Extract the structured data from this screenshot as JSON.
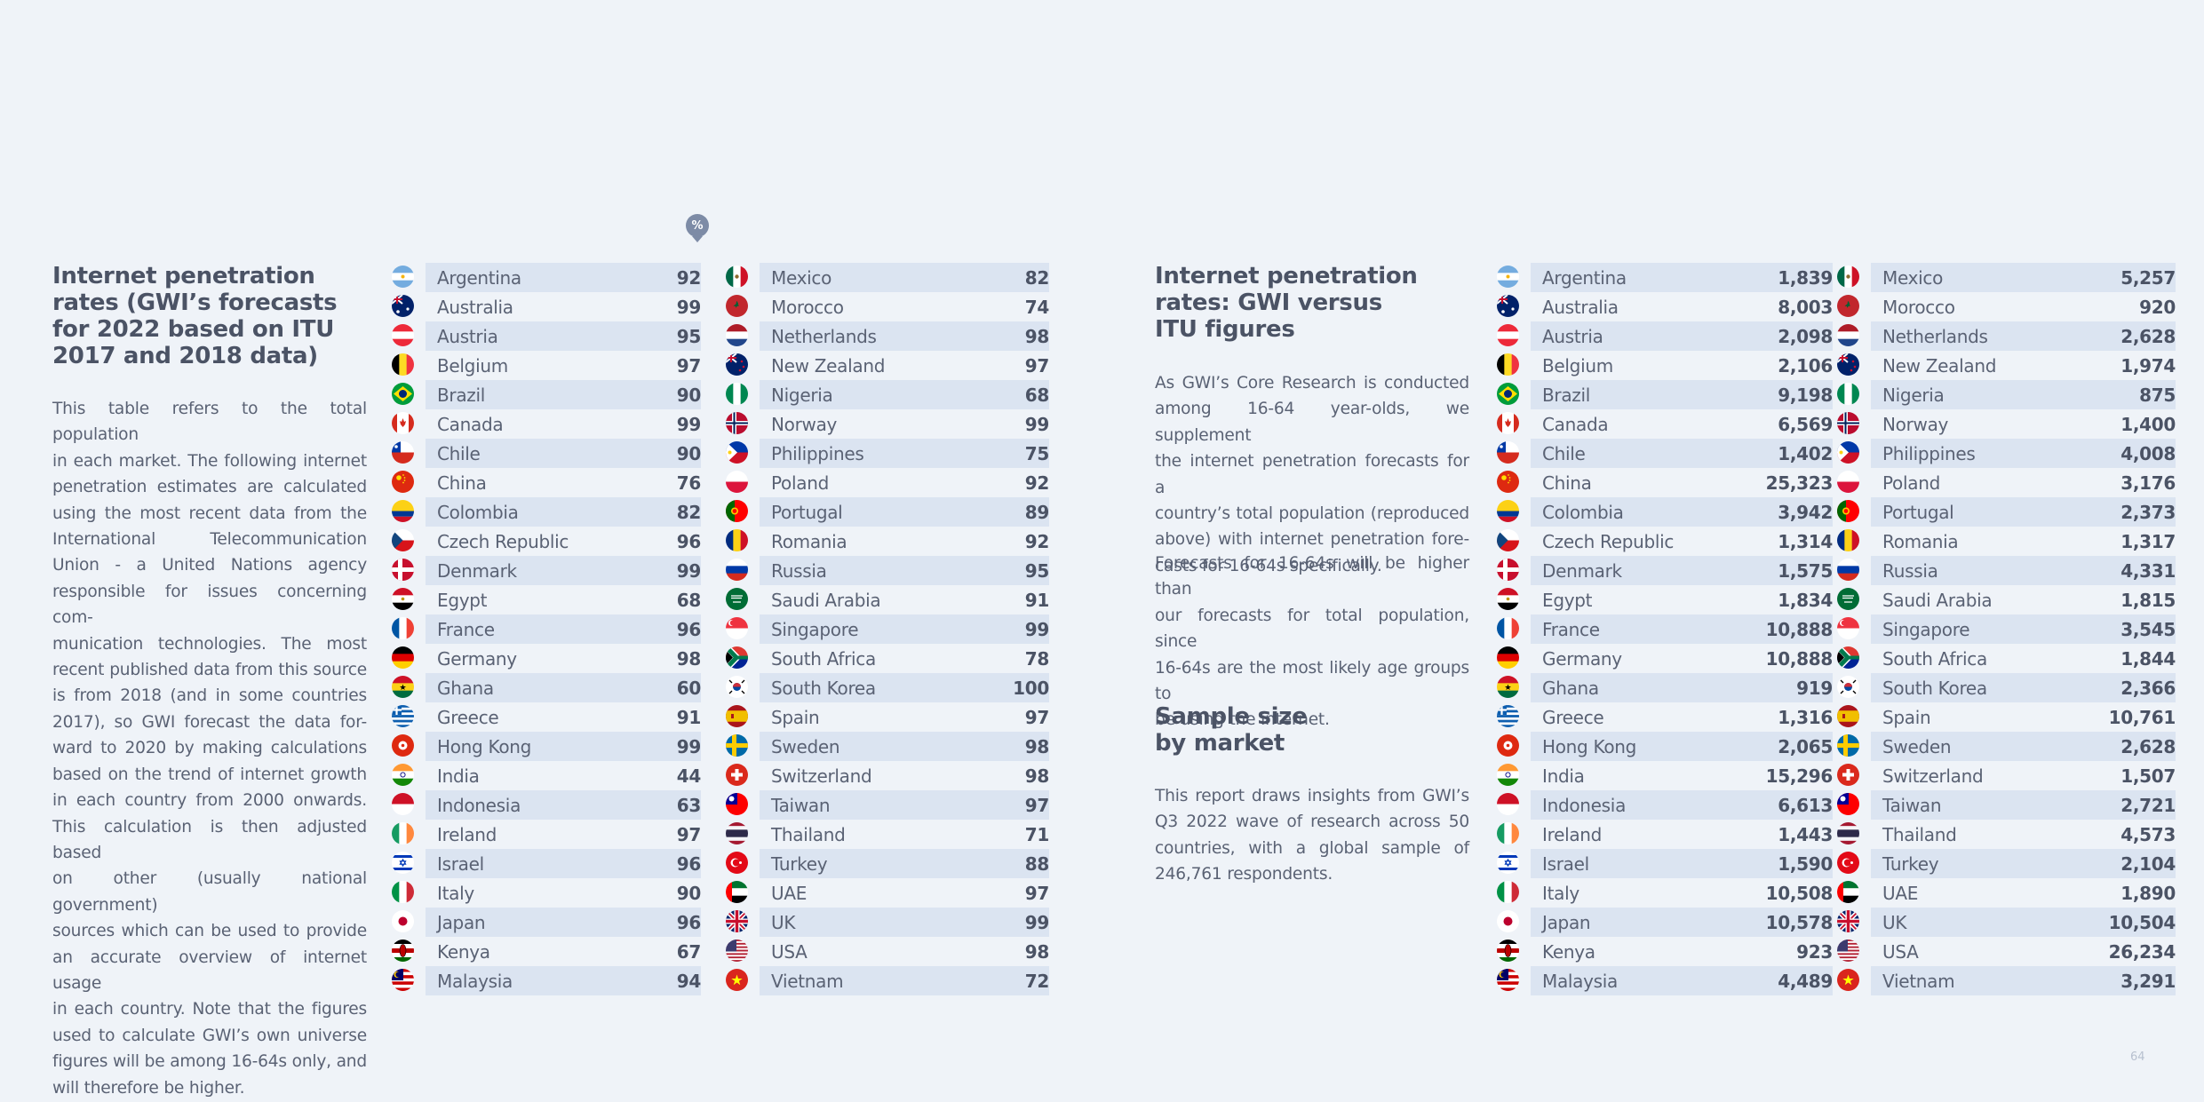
{
  "left_section": {
    "title_lines": [
      "Internet penetration",
      "rates (GWI’s forecasts",
      "for 2022 based on ITU",
      "2017 and 2018 data)"
    ],
    "paragraph_lines": [
      "This table refers to the total population",
      "in each market. The following internet",
      "penetration estimates are calculated",
      "using the most recent data from the",
      "International Telecommunication",
      "Union - a United Nations agency",
      "responsible for issues concerning com-",
      "munication technologies. The most",
      "recent published data from this source",
      "is from 2018 (and in some countries",
      "2017), so GWI forecast the data for-",
      "ward to 2020 by making calculations",
      "based on the trend of internet growth",
      "in each country from 2000 onwards.",
      "This calculation is then adjusted based",
      "on other (usually national government)",
      "sources which can be used to provide",
      "an accurate overview of internet usage",
      "in each country. Note that the figures",
      "used to calculate GWI’s own universe",
      "figures will be among 16-64s only, and",
      "will therefore be higher."
    ]
  },
  "percent_marker": "%",
  "middle_section": {
    "title_lines": [
      "Internet penetration",
      "rates: GWI versus",
      "ITU figures"
    ],
    "paragraph1_lines": [
      "As GWI’s Core Research is conducted",
      "among 16-64 year-olds, we supplement",
      "the internet penetration forecasts for a",
      "country’s total population (reproduced",
      "above) with internet penetration fore-",
      "casts for 16-64s specifically."
    ],
    "paragraph2_lines": [
      "Forecasts for 16-64s will be higher than",
      "our forecasts for total population, since",
      "16-64s are the most likely age groups to",
      "be using the internet."
    ],
    "sample_title_lines": [
      "Sample size",
      "by market"
    ],
    "sample_paragraph_lines": [
      "This report draws insights from GWI’s",
      "Q3 2022 wave of research across 50",
      "countries, with a global sample of",
      "246,761 respondents."
    ]
  },
  "penetration_table_left": [
    {
      "country": "Argentina",
      "value": "92",
      "flag": "argentina-flag"
    },
    {
      "country": "Australia",
      "value": "99",
      "flag": "australia-flag"
    },
    {
      "country": "Austria",
      "value": "95",
      "flag": "austria-flag"
    },
    {
      "country": "Belgium",
      "value": "97",
      "flag": "belgium-flag"
    },
    {
      "country": "Brazil",
      "value": "90",
      "flag": "brazil-flag"
    },
    {
      "country": "Canada",
      "value": "99",
      "flag": "canada-flag"
    },
    {
      "country": "Chile",
      "value": "90",
      "flag": "chile-flag"
    },
    {
      "country": "China",
      "value": "76",
      "flag": "china-flag"
    },
    {
      "country": "Colombia",
      "value": "82",
      "flag": "colombia-flag"
    },
    {
      "country": "Czech Republic",
      "value": "96",
      "flag": "czech-flag"
    },
    {
      "country": "Denmark",
      "value": "99",
      "flag": "denmark-flag"
    },
    {
      "country": "Egypt",
      "value": "68",
      "flag": "egypt-flag"
    },
    {
      "country": "France",
      "value": "96",
      "flag": "france-flag"
    },
    {
      "country": "Germany",
      "value": "98",
      "flag": "germany-flag"
    },
    {
      "country": "Ghana",
      "value": "60",
      "flag": "ghana-flag"
    },
    {
      "country": "Greece",
      "value": "91",
      "flag": "greece-flag"
    },
    {
      "country": "Hong Kong",
      "value": "99",
      "flag": "hong-kong-flag"
    },
    {
      "country": "India",
      "value": "44",
      "flag": "india-flag"
    },
    {
      "country": "Indonesia",
      "value": "63",
      "flag": "indonesia-flag"
    },
    {
      "country": "Ireland",
      "value": "97",
      "flag": "ireland-flag"
    },
    {
      "country": "Israel",
      "value": "96",
      "flag": "israel-flag"
    },
    {
      "country": "Italy",
      "value": "90",
      "flag": "italy-flag"
    },
    {
      "country": "Japan",
      "value": "96",
      "flag": "japan-flag"
    },
    {
      "country": "Kenya",
      "value": "67",
      "flag": "kenya-flag"
    },
    {
      "country": "Malaysia",
      "value": "94",
      "flag": "malaysia-flag"
    }
  ],
  "penetration_table_right": [
    {
      "country": "Mexico",
      "value": "82",
      "flag": "mexico-flag"
    },
    {
      "country": "Morocco",
      "value": "74",
      "flag": "morocco-flag"
    },
    {
      "country": "Netherlands",
      "value": "98",
      "flag": "netherlands-flag"
    },
    {
      "country": "New Zealand",
      "value": "97",
      "flag": "new-zealand-flag"
    },
    {
      "country": "Nigeria",
      "value": "68",
      "flag": "nigeria-flag"
    },
    {
      "country": "Norway",
      "value": "99",
      "flag": "norway-flag"
    },
    {
      "country": "Philippines",
      "value": "75",
      "flag": "philippines-flag"
    },
    {
      "country": "Poland",
      "value": "92",
      "flag": "poland-flag"
    },
    {
      "country": "Portugal",
      "value": "89",
      "flag": "portugal-flag"
    },
    {
      "country": "Romania",
      "value": "92",
      "flag": "romania-flag"
    },
    {
      "country": "Russia",
      "value": "95",
      "flag": "russia-flag"
    },
    {
      "country": "Saudi Arabia",
      "value": "91",
      "flag": "saudi-arabia-flag"
    },
    {
      "country": "Singapore",
      "value": "99",
      "flag": "singapore-flag"
    },
    {
      "country": "South Africa",
      "value": "78",
      "flag": "south-africa-flag"
    },
    {
      "country": "South Korea",
      "value": "100",
      "flag": "south-korea-flag"
    },
    {
      "country": "Spain",
      "value": "97",
      "flag": "spain-flag"
    },
    {
      "country": "Sweden",
      "value": "98",
      "flag": "sweden-flag"
    },
    {
      "country": "Switzerland",
      "value": "98",
      "flag": "switzerland-flag"
    },
    {
      "country": "Taiwan",
      "value": "97",
      "flag": "taiwan-flag"
    },
    {
      "country": "Thailand",
      "value": "71",
      "flag": "thailand-flag"
    },
    {
      "country": "Turkey",
      "value": "88",
      "flag": "turkey-flag"
    },
    {
      "country": "UAE",
      "value": "97",
      "flag": "uae-flag"
    },
    {
      "country": "UK",
      "value": "99",
      "flag": "uk-flag"
    },
    {
      "country": "USA",
      "value": "98",
      "flag": "usa-flag"
    },
    {
      "country": "Vietnam",
      "value": "72",
      "flag": "vietnam-flag"
    }
  ],
  "sample_table_left": [
    {
      "country": "Argentina",
      "value": "1,839",
      "flag": "argentina-flag"
    },
    {
      "country": "Australia",
      "value": "8,003",
      "flag": "australia-flag"
    },
    {
      "country": "Austria",
      "value": "2,098",
      "flag": "austria-flag"
    },
    {
      "country": "Belgium",
      "value": "2,106",
      "flag": "belgium-flag"
    },
    {
      "country": "Brazil",
      "value": "9,198",
      "flag": "brazil-flag"
    },
    {
      "country": "Canada",
      "value": "6,569",
      "flag": "canada-flag"
    },
    {
      "country": "Chile",
      "value": "1,402",
      "flag": "chile-flag"
    },
    {
      "country": "China",
      "value": "25,323",
      "flag": "china-flag"
    },
    {
      "country": "Colombia",
      "value": "3,942",
      "flag": "colombia-flag"
    },
    {
      "country": "Czech Republic",
      "value": "1,314",
      "flag": "czech-flag"
    },
    {
      "country": "Denmark",
      "value": "1,575",
      "flag": "denmark-flag"
    },
    {
      "country": "Egypt",
      "value": "1,834",
      "flag": "egypt-flag"
    },
    {
      "country": "France",
      "value": "10,888",
      "flag": "france-flag"
    },
    {
      "country": "Germany",
      "value": "10,888",
      "flag": "germany-flag"
    },
    {
      "country": "Ghana",
      "value": "919",
      "flag": "ghana-flag"
    },
    {
      "country": "Greece",
      "value": "1,316",
      "flag": "greece-flag"
    },
    {
      "country": "Hong Kong",
      "value": "2,065",
      "flag": "hong-kong-flag"
    },
    {
      "country": "India",
      "value": "15,296",
      "flag": "india-flag"
    },
    {
      "country": "Indonesia",
      "value": "6,613",
      "flag": "indonesia-flag"
    },
    {
      "country": "Ireland",
      "value": "1,443",
      "flag": "ireland-flag"
    },
    {
      "country": "Israel",
      "value": "1,590",
      "flag": "israel-flag"
    },
    {
      "country": "Italy",
      "value": "10,508",
      "flag": "italy-flag"
    },
    {
      "country": "Japan",
      "value": "10,578",
      "flag": "japan-flag"
    },
    {
      "country": "Kenya",
      "value": "923",
      "flag": "kenya-flag"
    },
    {
      "country": "Malaysia",
      "value": "4,489",
      "flag": "malaysia-flag"
    }
  ],
  "sample_table_right": [
    {
      "country": "Mexico",
      "value": "5,257",
      "flag": "mexico-flag"
    },
    {
      "country": "Morocco",
      "value": "920",
      "flag": "morocco-flag"
    },
    {
      "country": "Netherlands",
      "value": "2,628",
      "flag": "netherlands-flag"
    },
    {
      "country": "New Zealand",
      "value": "1,974",
      "flag": "new-zealand-flag"
    },
    {
      "country": "Nigeria",
      "value": "875",
      "flag": "nigeria-flag"
    },
    {
      "country": "Norway",
      "value": "1,400",
      "flag": "norway-flag"
    },
    {
      "country": "Philippines",
      "value": "4,008",
      "flag": "philippines-flag"
    },
    {
      "country": "Poland",
      "value": "3,176",
      "flag": "poland-flag"
    },
    {
      "country": "Portugal",
      "value": "2,373",
      "flag": "portugal-flag"
    },
    {
      "country": "Romania",
      "value": "1,317",
      "flag": "romania-flag"
    },
    {
      "country": "Russia",
      "value": "4,331",
      "flag": "russia-flag"
    },
    {
      "country": "Saudi Arabia",
      "value": "1,815",
      "flag": "saudi-arabia-flag"
    },
    {
      "country": "Singapore",
      "value": "3,545",
      "flag": "singapore-flag"
    },
    {
      "country": "South Africa",
      "value": "1,844",
      "flag": "south-africa-flag"
    },
    {
      "country": "South Korea",
      "value": "2,366",
      "flag": "south-korea-flag"
    },
    {
      "country": "Spain",
      "value": "10,761",
      "flag": "spain-flag"
    },
    {
      "country": "Sweden",
      "value": "2,628",
      "flag": "sweden-flag"
    },
    {
      "country": "Switzerland",
      "value": "1,507",
      "flag": "switzerland-flag"
    },
    {
      "country": "Taiwan",
      "value": "2,721",
      "flag": "taiwan-flag"
    },
    {
      "country": "Thailand",
      "value": "4,573",
      "flag": "thailand-flag"
    },
    {
      "country": "Turkey",
      "value": "2,104",
      "flag": "turkey-flag"
    },
    {
      "country": "UAE",
      "value": "1,890",
      "flag": "uae-flag"
    },
    {
      "country": "UK",
      "value": "10,504",
      "flag": "uk-flag"
    },
    {
      "country": "USA",
      "value": "26,234",
      "flag": "usa-flag"
    },
    {
      "country": "Vietnam",
      "value": "3,291",
      "flag": "vietnam-flag"
    }
  ],
  "page_number": "64",
  "colors": {
    "background": "#eff3f8",
    "row_stripe": "#dbe4f1",
    "heading_text": "#4b5365",
    "body_text": "#5a6274",
    "marker": "#7d8ba6"
  }
}
